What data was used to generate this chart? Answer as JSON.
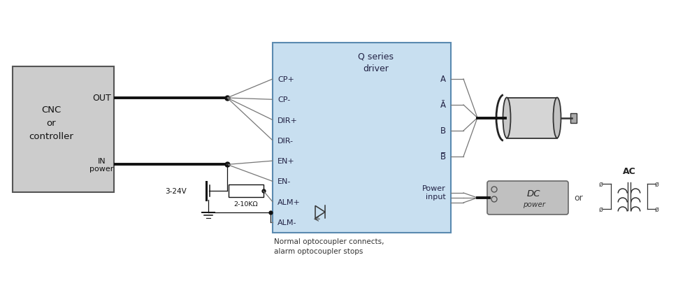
{
  "bg_color": "#ffffff",
  "driver_box_color": "#c8dff0",
  "driver_box_edge": "#5a8ab0",
  "cnc_box_color": "#cccccc",
  "cnc_box_edge": "#555555",
  "cnc_label": "CNC\nor\ncontroller",
  "cnc_out": "OUT",
  "cnc_in": "IN\npower",
  "left_pins": [
    "CP+",
    "CP-",
    "DIR+",
    "DIR-",
    "EN+",
    "EN-",
    "ALM+",
    "ALM-"
  ],
  "right_pin_labels": [
    "A",
    "Ā",
    "B",
    "B̅"
  ],
  "right_power_label": "Power\ninput",
  "driver_title": "Q series\ndriver",
  "voltage_label": "3-24V",
  "resistor_label": "2-10KΩ",
  "note": "Normal optocoupler connects,\nalarm optocoupler stops",
  "or_label": "or",
  "dc_label": "DC",
  "power_label": "power",
  "ac_label": "AC",
  "wire_color": "#111111",
  "thin_wire_color": "#777777",
  "lw_thick": 2.8,
  "lw_thin": 0.9
}
